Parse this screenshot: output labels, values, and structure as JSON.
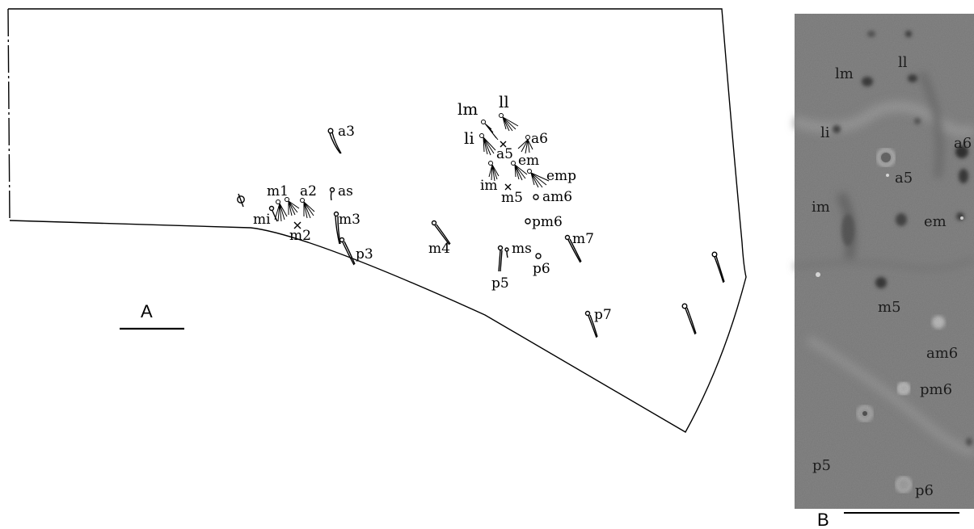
{
  "panels": {
    "a": {
      "label": "A"
    },
    "b": {
      "label": "B"
    }
  },
  "drawing_labels": {
    "a3": "a3",
    "m1": "m1",
    "a2": "a2",
    "as": "as",
    "mi": "mi",
    "m2": "m2",
    "m3": "m3",
    "p3": "p3",
    "m4": "m4",
    "lm": "lm",
    "ll": "ll",
    "li": "li",
    "a5": "a5",
    "a6": "a6",
    "em": "em",
    "emp": "emp",
    "im": "im",
    "m5": "m5",
    "am6": "am6",
    "pm6": "pm6",
    "ms": "ms",
    "m7": "m7",
    "p6": "p6",
    "p5": "p5",
    "p7": "p7"
  },
  "photo_labels": {
    "lm": "lm",
    "ll": "ll",
    "li": "li",
    "a6": "a6",
    "a5": "a5",
    "im": "im",
    "em": "em",
    "m5": "m5",
    "am6": "am6",
    "pm6": "pm6",
    "p5": "p5",
    "p6": "p6"
  },
  "colors": {
    "ink": "#000000",
    "photo_background": "#868686",
    "photo_text": "#1c1c1c"
  }
}
